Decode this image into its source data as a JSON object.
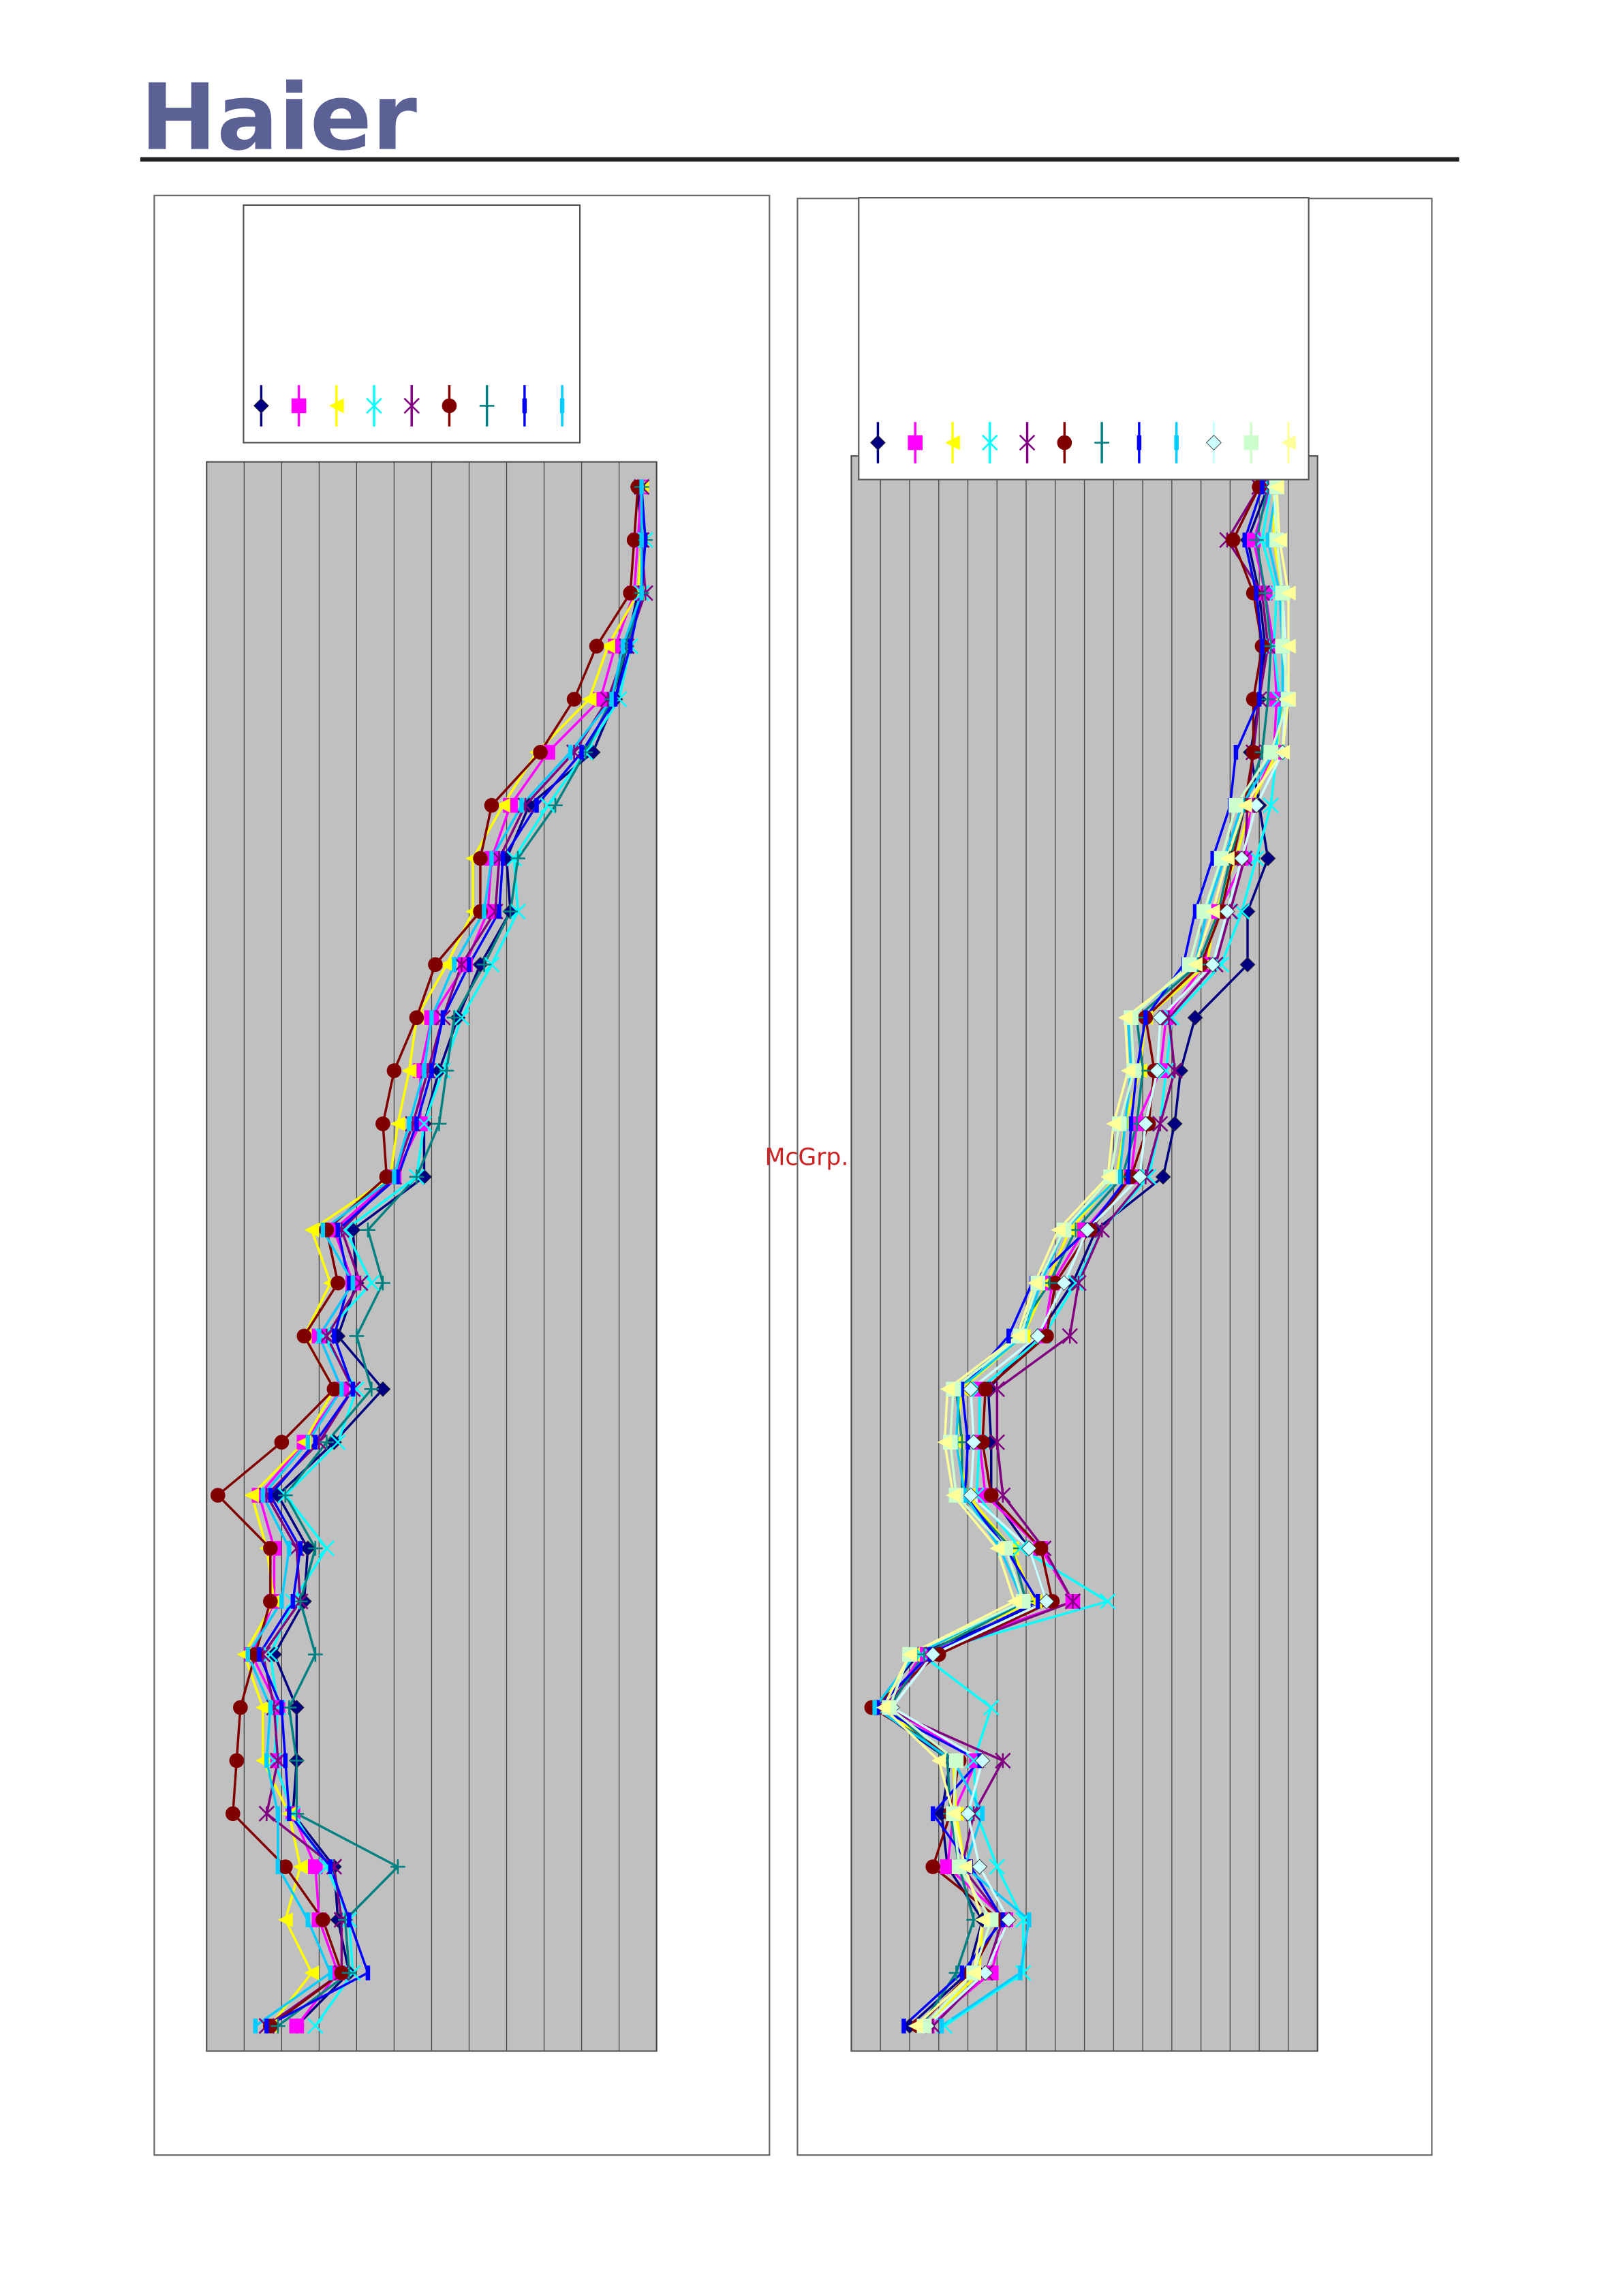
{
  "header": {
    "logo": "Haier"
  },
  "watermark": "McGrp.Ru",
  "chart_data": [
    {
      "type": "line",
      "orientation": "horizontal",
      "xlim": [
        0,
        12
      ],
      "xticks": [
        0,
        1,
        2,
        3,
        4,
        5,
        6,
        7,
        8,
        9,
        10,
        11,
        12
      ],
      "grid": true,
      "legend": "top",
      "series": [
        {
          "color": "#000080",
          "marker": "diamond",
          "values": [
            11.5,
            11.6,
            11.5,
            11.2,
            10.9,
            10.3,
            8.6,
            8.0,
            8.1,
            7.3,
            6.7,
            6.2,
            5.8,
            5.8,
            3.9,
            4.0,
            3.5,
            4.7,
            3.4,
            1.9,
            2.7,
            2.6,
            1.8,
            2.4,
            2.4,
            2.3,
            3.4,
            3.5,
            3.8,
            2.4
          ]
        },
        {
          "color": "#ff00ff",
          "marker": "square",
          "values": [
            11.6,
            11.5,
            11.4,
            10.9,
            10.5,
            9.1,
            8.1,
            7.6,
            7.5,
            6.9,
            6.0,
            5.7,
            5.7,
            5.0,
            3.4,
            3.9,
            3.0,
            3.6,
            2.6,
            1.4,
            1.8,
            1.8,
            1.2,
            1.9,
            1.8,
            2.3,
            2.9,
            3.0,
            3.5,
            2.4
          ]
        },
        {
          "color": "#ffff00",
          "marker": "triangle",
          "values": [
            11.6,
            11.6,
            11.5,
            10.7,
            10.2,
            8.8,
            7.9,
            7.1,
            7.1,
            6.4,
            5.6,
            5.4,
            5.1,
            4.9,
            2.8,
            3.3,
            2.6,
            3.4,
            2.6,
            1.2,
            1.6,
            1.8,
            1.0,
            1.5,
            1.5,
            2.2,
            2.5,
            2.1,
            2.8,
            1.7
          ]
        },
        {
          "color": "#00ffff",
          "marker": "x",
          "values": [
            11.6,
            11.7,
            11.6,
            11.3,
            11.0,
            10.1,
            9.1,
            8.2,
            8.3,
            7.6,
            6.8,
            6.3,
            5.8,
            5.6,
            3.7,
            4.4,
            3.1,
            4.0,
            3.5,
            2.1,
            3.2,
            2.3,
            1.7,
            1.9,
            1.8,
            2.3,
            3.2,
            3.8,
            3.9,
            2.9
          ]
        },
        {
          "color": "#800080",
          "marker": "star",
          "values": [
            11.6,
            11.6,
            11.7,
            11.2,
            10.7,
            9.8,
            8.5,
            7.8,
            7.7,
            6.8,
            6.3,
            5.9,
            5.5,
            5.0,
            3.6,
            4.1,
            3.2,
            3.9,
            3.0,
            1.6,
            2.4,
            2.5,
            1.5,
            1.8,
            1.9,
            1.6,
            3.4,
            3.6,
            3.6,
            1.6
          ]
        },
        {
          "color": "#800000",
          "marker": "circle",
          "values": [
            11.5,
            11.4,
            11.3,
            10.4,
            9.8,
            8.9,
            7.6,
            7.3,
            7.3,
            6.1,
            5.6,
            5.0,
            4.7,
            4.8,
            3.2,
            3.5,
            2.6,
            3.4,
            2.0,
            0.3,
            1.7,
            1.7,
            1.3,
            0.9,
            0.8,
            0.7,
            2.1,
            3.1,
            3.6,
            1.7
          ]
        },
        {
          "color": "#008080",
          "marker": "plus",
          "values": [
            11.6,
            11.7,
            11.6,
            11.2,
            10.8,
            10.1,
            9.3,
            8.3,
            8.1,
            7.4,
            6.6,
            6.4,
            6.2,
            5.6,
            4.3,
            4.7,
            4.0,
            4.4,
            3.2,
            2.1,
            2.9,
            2.5,
            2.9,
            2.2,
            2.4,
            2.4,
            5.1,
            3.7,
            3.8,
            1.9
          ]
        },
        {
          "color": "#0000ff",
          "marker": "bar",
          "values": [
            11.6,
            11.7,
            11.6,
            11.3,
            10.9,
            10.0,
            8.8,
            7.9,
            7.8,
            7.0,
            6.3,
            6.0,
            5.6,
            5.1,
            3.5,
            3.8,
            3.4,
            3.9,
            2.9,
            1.7,
            2.5,
            2.3,
            1.4,
            2.0,
            2.1,
            2.2,
            3.3,
            3.8,
            4.3,
            1.6
          ]
        },
        {
          "color": "#00ccff",
          "marker": "bar",
          "values": [
            11.6,
            11.6,
            11.6,
            11.1,
            10.8,
            9.7,
            8.4,
            7.6,
            7.4,
            6.6,
            6.0,
            5.8,
            5.4,
            5.0,
            3.1,
            3.9,
            3.0,
            3.6,
            2.7,
            1.5,
            2.2,
            2.0,
            1.1,
            1.7,
            1.6,
            1.9,
            1.9,
            2.7,
            3.3,
            1.3
          ]
        }
      ]
    },
    {
      "type": "line",
      "orientation": "horizontal",
      "xlim": [
        0,
        16
      ],
      "xticks": [
        0,
        1,
        2,
        3,
        4,
        5,
        6,
        7,
        8,
        9,
        10,
        11,
        12,
        13,
        14,
        15,
        16
      ],
      "grid": true,
      "legend": "top",
      "series": [
        {
          "color": "#000080",
          "marker": "diamond",
          "values": [
            14.3,
            13.6,
            14.0,
            14.2,
            14.0,
            13.7,
            14.0,
            14.3,
            13.6,
            13.6,
            11.8,
            11.3,
            11.1,
            10.7,
            8.4,
            7.6,
            6.4,
            4.7,
            4.8,
            4.8,
            6.1,
            6.7,
            2.3,
            0.8,
            3.4,
            3.1,
            3.3,
            4.5,
            4.0,
            2.0
          ]
        },
        {
          "color": "#ff00ff",
          "marker": "square",
          "values": [
            14.4,
            13.8,
            14.2,
            14.5,
            14.6,
            14.5,
            13.7,
            13.5,
            12.6,
            12.1,
            10.8,
            10.6,
            9.8,
            9.6,
            8.0,
            6.9,
            6.6,
            4.4,
            4.4,
            4.6,
            6.5,
            7.6,
            2.4,
            1.3,
            4.3,
            3.5,
            3.3,
            5.3,
            4.8,
            2.6
          ]
        },
        {
          "color": "#ffff00",
          "marker": "triangle",
          "values": [
            14.5,
            14.5,
            14.8,
            14.8,
            14.8,
            14.6,
            13.7,
            13.2,
            12.5,
            12.2,
            10.1,
            9.9,
            9.4,
            9.1,
            7.5,
            6.7,
            5.9,
            3.8,
            3.6,
            4.0,
            5.5,
            6.3,
            2.1,
            1.0,
            3.5,
            3.6,
            3.9,
            4.5,
            4.4,
            2.5
          ]
        },
        {
          "color": "#00ffff",
          "marker": "x",
          "values": [
            14.4,
            14.1,
            14.6,
            14.5,
            14.7,
            14.6,
            14.4,
            13.9,
            13.4,
            12.7,
            11.0,
            10.8,
            10.6,
            10.2,
            8.6,
            7.7,
            6.6,
            4.4,
            4.4,
            4.3,
            5.8,
            8.8,
            2.4,
            4.8,
            4.2,
            4.3,
            5.0,
            5.9,
            5.9,
            3.2
          ]
        },
        {
          "color": "#800080",
          "marker": "star",
          "values": [
            14.0,
            12.9,
            14.1,
            14.3,
            14.0,
            13.8,
            13.6,
            13.5,
            13.0,
            12.5,
            10.9,
            11.1,
            10.6,
            10.1,
            8.6,
            7.8,
            7.5,
            5.0,
            5.0,
            5.2,
            6.6,
            7.6,
            2.8,
            1.1,
            5.2,
            4.2,
            3.8,
            5.2,
            4.6,
            2.8
          ]
        },
        {
          "color": "#800000",
          "marker": "circle",
          "values": [
            14.0,
            13.1,
            13.8,
            14.1,
            13.8,
            13.8,
            13.5,
            13.1,
            12.7,
            12.0,
            10.1,
            10.4,
            10.2,
            9.6,
            8.2,
            7.0,
            6.7,
            4.6,
            4.5,
            4.8,
            6.5,
            6.9,
            3.0,
            0.7,
            3.7,
            3.4,
            2.8,
            5.1,
            4.1,
            2.3
          ]
        },
        {
          "color": "#008080",
          "marker": "plus",
          "values": [
            14.3,
            13.9,
            14.2,
            14.4,
            14.3,
            14.1,
            13.5,
            13.0,
            12.6,
            11.9,
            9.8,
            10.0,
            9.8,
            9.3,
            7.7,
            6.8,
            5.6,
            3.6,
            3.8,
            3.8,
            5.5,
            6.0,
            2.5,
            1.3,
            3.3,
            3.4,
            3.7,
            4.2,
            3.6,
            2.4
          ]
        },
        {
          "color": "#0000ff",
          "marker": "bar",
          "values": [
            14.1,
            13.5,
            13.9,
            14.1,
            14.0,
            13.2,
            13.0,
            12.4,
            11.8,
            11.4,
            10.1,
            9.8,
            9.6,
            9.5,
            8.1,
            6.2,
            5.4,
            3.8,
            4.0,
            3.9,
            5.3,
            6.4,
            2.7,
            0.9,
            4.4,
            2.8,
            4.1,
            5.2,
            3.8,
            1.8
          ]
        },
        {
          "color": "#00ccff",
          "marker": "bar",
          "values": [
            14.6,
            14.3,
            14.7,
            14.8,
            14.8,
            14.5,
            13.4,
            12.8,
            12.2,
            11.8,
            9.5,
            9.6,
            9.4,
            9.2,
            7.3,
            6.5,
            5.9,
            3.7,
            3.6,
            3.9,
            5.1,
            5.9,
            2.2,
            0.8,
            3.5,
            4.5,
            3.9,
            6.1,
            5.8,
            3.1
          ]
        },
        {
          "color": "#ccffff",
          "marker": "diamond",
          "values": [
            14.5,
            14.6,
            14.8,
            14.9,
            14.9,
            14.8,
            13.9,
            13.4,
            12.9,
            12.4,
            10.6,
            10.5,
            10.1,
            9.9,
            8.1,
            7.3,
            6.4,
            4.1,
            4.2,
            4.1,
            6.1,
            6.7,
            2.8,
            1.4,
            4.5,
            4.0,
            4.4,
            5.4,
            4.6,
            2.6
          ]
        },
        {
          "color": "#ccffcc",
          "marker": "square",
          "values": [
            14.6,
            14.6,
            14.8,
            14.8,
            15.0,
            14.4,
            13.2,
            12.7,
            12.1,
            11.6,
            9.6,
            9.7,
            9.2,
            8.9,
            7.3,
            6.4,
            5.8,
            3.5,
            3.4,
            3.6,
            5.3,
            5.9,
            2.0,
            1.3,
            3.6,
            3.5,
            3.7,
            4.8,
            4.2,
            2.5
          ]
        },
        {
          "color": "#ffff99",
          "marker": "triangle",
          "values": [
            14.6,
            14.7,
            15.0,
            15.0,
            15.0,
            14.8,
            13.5,
            12.9,
            12.4,
            11.8,
            9.4,
            9.5,
            9.0,
            8.8,
            7.1,
            6.3,
            5.7,
            3.3,
            3.2,
            3.5,
            5.0,
            5.6,
            2.0,
            1.1,
            3.0,
            3.5,
            3.9,
            4.5,
            4.2,
            2.2
          ]
        }
      ]
    }
  ]
}
